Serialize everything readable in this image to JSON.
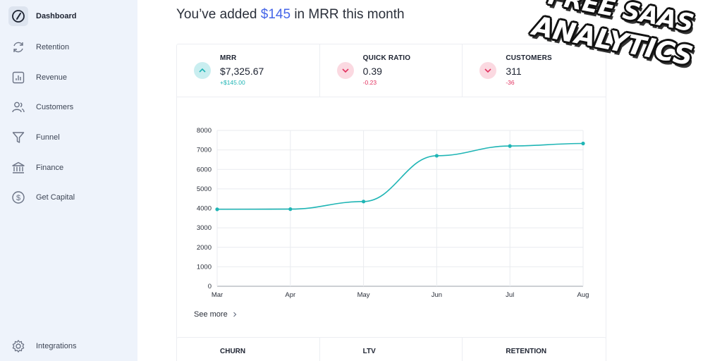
{
  "sidebar": {
    "items": [
      {
        "label": "Dashboard",
        "icon": "compass-icon"
      },
      {
        "label": "Retention",
        "icon": "refresh-icon"
      },
      {
        "label": "Revenue",
        "icon": "bar-chart-icon"
      },
      {
        "label": "Customers",
        "icon": "users-icon"
      },
      {
        "label": "Funnel",
        "icon": "funnel-icon"
      },
      {
        "label": "Finance",
        "icon": "bank-icon"
      },
      {
        "label": "Get Capital",
        "icon": "dollar-circle-icon"
      }
    ],
    "bottom_item": {
      "label": "Integrations",
      "icon": "gear-icon"
    }
  },
  "header": {
    "prefix": "You’ve added",
    "amount": "$145",
    "suffix": "in MRR this month"
  },
  "kpis": [
    {
      "title": "MRR",
      "value": "$7,325.67",
      "delta": "+$145.00",
      "trend": "up"
    },
    {
      "title": "QUICK RATIO",
      "value": "0.39",
      "delta": "-0.23",
      "trend": "down"
    },
    {
      "title": "CUSTOMERS",
      "value": "311",
      "delta": "-36",
      "trend": "down"
    }
  ],
  "chart_data": {
    "type": "line",
    "title": "",
    "xlabel": "",
    "ylabel": "",
    "x": [
      "Mar",
      "Apr",
      "May",
      "Jun",
      "Jul",
      "Aug"
    ],
    "series": [
      {
        "name": "MRR",
        "values": [
          3950,
          3960,
          4350,
          6700,
          7200,
          7330
        ]
      }
    ],
    "ylim": [
      0,
      8000
    ],
    "yticks": [
      0,
      1000,
      2000,
      3000,
      4000,
      5000,
      6000,
      7000,
      8000
    ],
    "grid": true,
    "color": "#1fb5b5"
  },
  "see_more_label": "See more",
  "secondary_kpis": [
    {
      "title": "CHURN"
    },
    {
      "title": "LTV"
    },
    {
      "title": "RETENTION"
    }
  ],
  "overlay": {
    "line1": "FREE SAAS",
    "line2": "ANALYTICS"
  },
  "colors": {
    "accent": "#4666e8",
    "positive": "#1fb5b5",
    "negative": "#e2325f",
    "sidebar_bg": "#eef3fb"
  }
}
